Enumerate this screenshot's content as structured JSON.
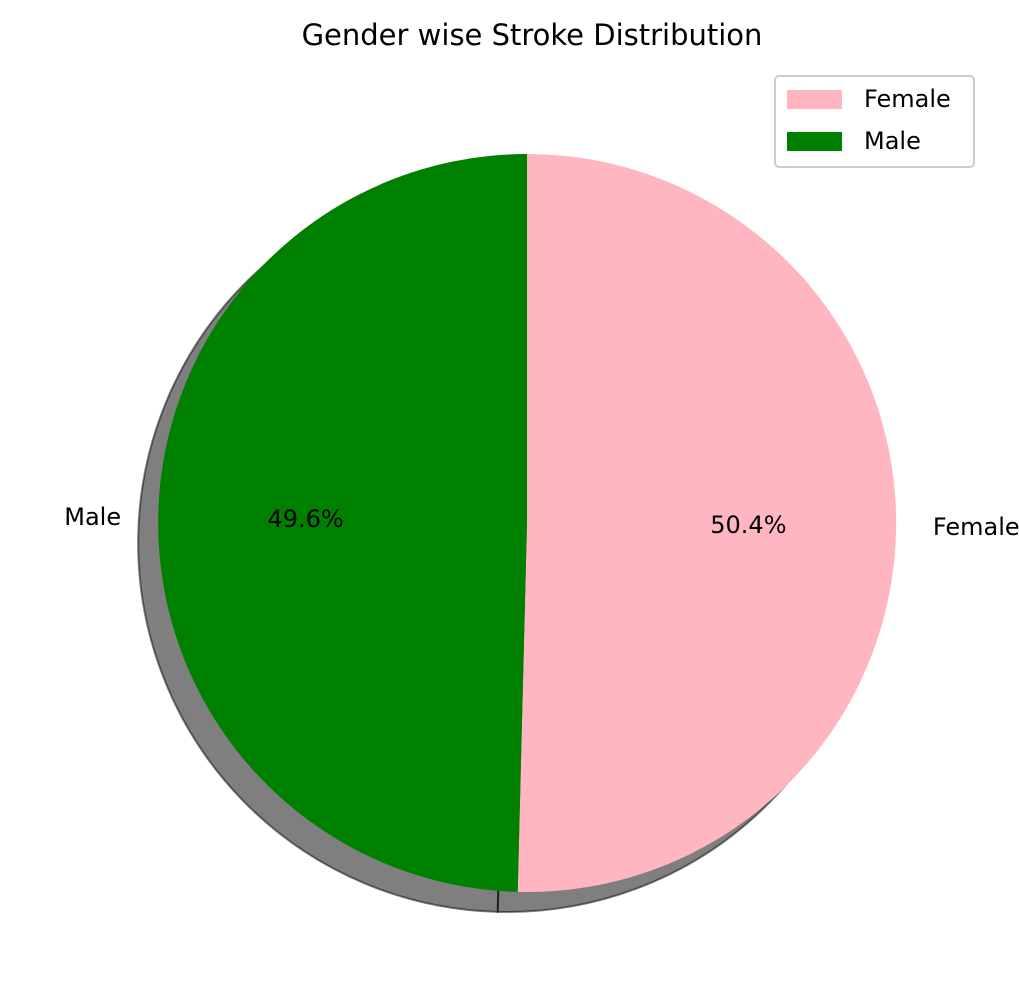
{
  "chart_data": {
    "type": "pie",
    "title": "Gender wise Stroke Distribution",
    "categories": [
      "Female",
      "Male"
    ],
    "values": [
      50.4,
      49.6
    ],
    "percent_labels": [
      "50.4%",
      "49.6%"
    ],
    "colors": [
      "#ffb6c1",
      "#008000"
    ],
    "start_angle_deg": 90,
    "direction": "clockwise",
    "shadow": true,
    "legend": {
      "position": "upper-right",
      "entries": [
        "Female",
        "Male"
      ]
    }
  }
}
